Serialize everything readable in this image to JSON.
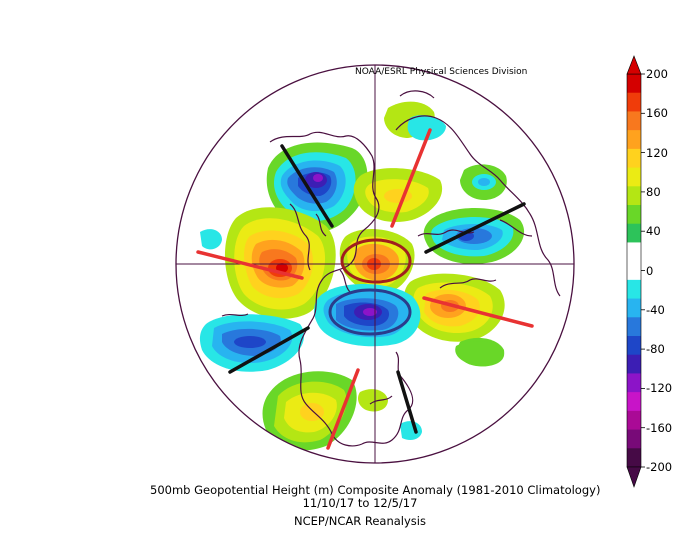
{
  "credit": "NOAA/ESRL Physical Sciences Division",
  "caption": {
    "title": "500mb Geopotential Height (m) Composite Anomaly (1981-2010 Climatology)",
    "dates": "11/10/17  to 12/5/17",
    "source": "NCEP/NCAR Reanalysis"
  },
  "colorbar": {
    "labels": [
      "200",
      "160",
      "120",
      "80",
      "40",
      "0",
      "-40",
      "-80",
      "-120",
      "-160",
      "-200"
    ],
    "colors": [
      "#d40000",
      "#f03c0a",
      "#f8781e",
      "#ffa21e",
      "#ffd21e",
      "#ebeb14",
      "#b4e614",
      "#69d728",
      "#2dc35a",
      "#ffffff",
      "#ffffff",
      "#28e6e6",
      "#28b4f0",
      "#2878dc",
      "#1e46c8",
      "#3c1eb4",
      "#8c14c8",
      "#c814c8",
      "#aa0a96",
      "#780a78",
      "#460a46"
    ]
  },
  "colors": {
    "boundary": "#4a1040",
    "ridge_axis": "#e83232",
    "trough_axis": "#111111",
    "ridge_oval": "#a01e1e",
    "trough_oval": "#2a3c8c"
  }
}
